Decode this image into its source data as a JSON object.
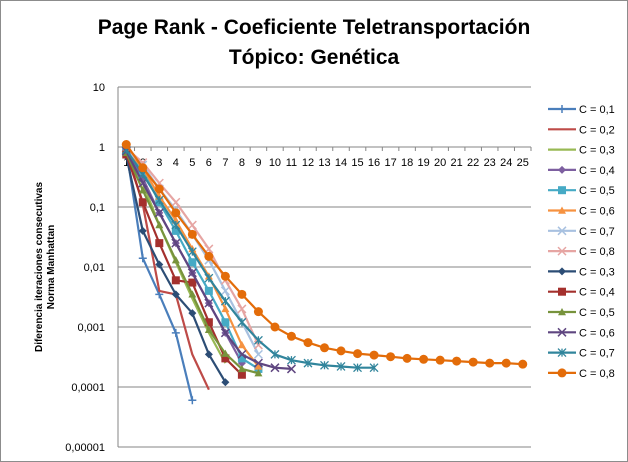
{
  "chart_data": {
    "type": "line",
    "title": "Page Rank - Coeficiente  Teletransportación",
    "subtitle": "Tópico: Genética",
    "ylabel": "Diferencia iteraciones consecutivas",
    "ylabel2": "Norma Manhattan",
    "yscale": "log",
    "ylim": [
      1e-05,
      10
    ],
    "y_tick_labels": [
      "10",
      "1",
      "0,1",
      "0,01",
      "0,001",
      "0,0001",
      "0,00001"
    ],
    "x_tick_labels": [
      "1",
      "2",
      "3",
      "4",
      "5",
      "6",
      "7",
      "8",
      "9",
      "10",
      "11",
      "12",
      "13",
      "14",
      "15",
      "16",
      "17",
      "18",
      "19",
      "20",
      "21",
      "22",
      "23",
      "24",
      "25"
    ],
    "grid": true,
    "legend_position": "right",
    "series": [
      {
        "name": "C = 0,1",
        "color": "#4a7ebb",
        "marker": "plus",
        "values": [
          0.9,
          0.014,
          0.0035,
          0.0008,
          6e-05
        ]
      },
      {
        "name": "C = 0,2",
        "color": "#be4b48",
        "marker": "none",
        "values": [
          0.9,
          0.11,
          0.004,
          0.0035,
          0.00035,
          9e-05
        ]
      },
      {
        "name": "C = 0,3",
        "color": "#98b954",
        "marker": "none",
        "values": [
          0.9,
          0.25,
          0.05,
          0.012,
          0.003,
          0.0008,
          0.00025
        ]
      },
      {
        "name": "C = 0,4",
        "color": "#7d5fa0",
        "marker": "diamond",
        "values": [
          0.9,
          0.3,
          0.08,
          0.025,
          0.008,
          0.0025,
          0.0008,
          0.00025
        ]
      },
      {
        "name": "C = 0,5",
        "color": "#46aac5",
        "marker": "square",
        "values": [
          0.9,
          0.4,
          0.12,
          0.04,
          0.012,
          0.004,
          0.0012,
          0.0003,
          0.0002
        ]
      },
      {
        "name": "C = 0,6",
        "color": "#f69240",
        "marker": "triangle",
        "values": [
          0.9,
          0.45,
          0.15,
          0.06,
          0.02,
          0.007,
          0.002,
          0.0005,
          0.00022
        ]
      },
      {
        "name": "C = 0,7",
        "color": "#a8c1e0",
        "marker": "x",
        "values": [
          0.9,
          0.5,
          0.2,
          0.09,
          0.035,
          0.013,
          0.004,
          0.0012,
          0.00035
        ]
      },
      {
        "name": "C = 0,8",
        "color": "#e6a5a3",
        "marker": "x",
        "values": [
          0.95,
          0.55,
          0.25,
          0.12,
          0.05,
          0.02,
          0.006,
          0.002,
          0.0005
        ]
      },
      {
        "name": "C = 0,3",
        "color": "#2c4d75",
        "marker": "diamond",
        "values": [
          0.7,
          0.04,
          0.011,
          0.0035,
          0.0017,
          0.00035,
          0.00012
        ]
      },
      {
        "name": "C = 0,4",
        "color": "#a4302d",
        "marker": "square",
        "values": [
          0.75,
          0.12,
          0.025,
          0.006,
          0.0055,
          0.0012,
          0.0003,
          0.00016
        ]
      },
      {
        "name": "C = 0,5",
        "color": "#77933c",
        "marker": "triangle",
        "values": [
          0.8,
          0.19,
          0.05,
          0.013,
          0.0035,
          0.0009,
          0.00036,
          0.0002,
          0.00017
        ]
      },
      {
        "name": "C = 0,6",
        "color": "#5f4680",
        "marker": "x",
        "values": [
          0.85,
          0.25,
          0.08,
          0.025,
          0.008,
          0.0025,
          0.0008,
          0.00035,
          0.00025,
          0.00021,
          0.0002
        ]
      },
      {
        "name": "C = 0,7",
        "color": "#31859c",
        "marker": "star",
        "values": [
          0.9,
          0.35,
          0.13,
          0.05,
          0.018,
          0.0065,
          0.0027,
          0.0012,
          0.0006,
          0.00035,
          0.00028,
          0.00025,
          0.00023,
          0.00022,
          0.00021,
          0.00021
        ]
      },
      {
        "name": "C = 0,8",
        "color": "#e36c09",
        "marker": "circle",
        "values": [
          1.1,
          0.45,
          0.2,
          0.08,
          0.035,
          0.015,
          0.007,
          0.0035,
          0.0018,
          0.001,
          0.0007,
          0.00055,
          0.00045,
          0.0004,
          0.00036,
          0.00034,
          0.00032,
          0.0003,
          0.00029,
          0.00028,
          0.00027,
          0.00026,
          0.00025,
          0.00025,
          0.00024
        ]
      }
    ]
  }
}
